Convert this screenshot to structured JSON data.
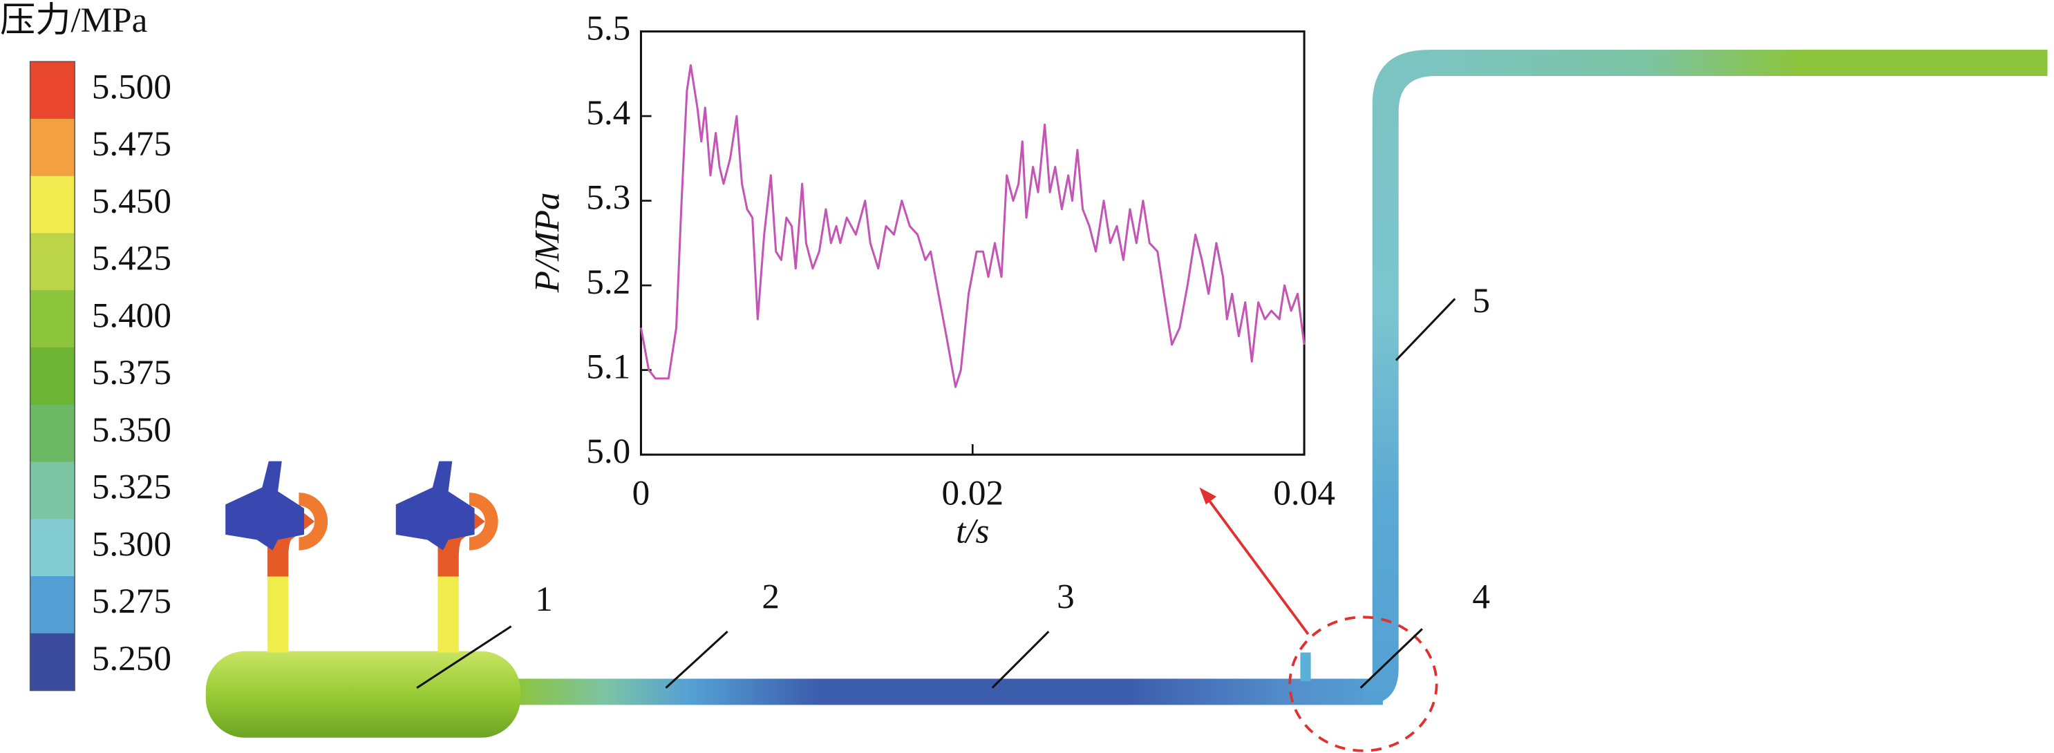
{
  "chart_data": {
    "type": "line",
    "xlabel": "t/s",
    "ylabel": "P/MPa",
    "x": [
      0,
      0.00047,
      0.00087,
      0.00166,
      0.00213,
      0.00245,
      0.00277,
      0.003,
      0.0034,
      0.00364,
      0.00387,
      0.00419,
      0.00451,
      0.00474,
      0.00498,
      0.00538,
      0.00577,
      0.00609,
      0.0064,
      0.00672,
      0.00704,
      0.00743,
      0.00783,
      0.00814,
      0.00846,
      0.00877,
      0.00909,
      0.00933,
      0.00972,
      0.00996,
      0.01036,
      0.01075,
      0.01115,
      0.01146,
      0.01178,
      0.01202,
      0.01241,
      0.01296,
      0.01352,
      0.01383,
      0.01431,
      0.01478,
      0.01526,
      0.01573,
      0.01621,
      0.01668,
      0.01715,
      0.01747,
      0.01794,
      0.01842,
      0.01897,
      0.01929,
      0.01976,
      0.02024,
      0.02063,
      0.02095,
      0.02134,
      0.02174,
      0.02206,
      0.02245,
      0.02277,
      0.023,
      0.02324,
      0.02364,
      0.02395,
      0.02435,
      0.02466,
      0.02498,
      0.02538,
      0.02577,
      0.02601,
      0.02632,
      0.02664,
      0.02704,
      0.02743,
      0.02791,
      0.0283,
      0.0287,
      0.02909,
      0.02949,
      0.02988,
      0.03028,
      0.03067,
      0.03115,
      0.03154,
      0.03202,
      0.03249,
      0.03296,
      0.03344,
      0.03383,
      0.03423,
      0.0347,
      0.0351,
      0.03534,
      0.03565,
      0.03605,
      0.03644,
      0.03684,
      0.03723,
      0.03763,
      0.03802,
      0.0385,
      0.03881,
      0.03921,
      0.0396,
      0.04
    ],
    "series": [
      {
        "name": "P",
        "color": "#c455b4",
        "values": [
          5.15,
          5.1,
          5.09,
          5.09,
          5.15,
          5.3,
          5.43,
          5.46,
          5.41,
          5.37,
          5.41,
          5.33,
          5.38,
          5.34,
          5.32,
          5.35,
          5.4,
          5.32,
          5.29,
          5.28,
          5.16,
          5.26,
          5.33,
          5.24,
          5.23,
          5.28,
          5.27,
          5.22,
          5.32,
          5.25,
          5.22,
          5.24,
          5.29,
          5.25,
          5.27,
          5.25,
          5.28,
          5.26,
          5.3,
          5.25,
          5.22,
          5.27,
          5.26,
          5.3,
          5.27,
          5.26,
          5.23,
          5.24,
          5.19,
          5.14,
          5.08,
          5.1,
          5.19,
          5.24,
          5.24,
          5.21,
          5.25,
          5.21,
          5.33,
          5.3,
          5.32,
          5.37,
          5.28,
          5.34,
          5.31,
          5.39,
          5.31,
          5.34,
          5.29,
          5.33,
          5.3,
          5.36,
          5.29,
          5.27,
          5.24,
          5.3,
          5.25,
          5.27,
          5.23,
          5.29,
          5.25,
          5.3,
          5.25,
          5.24,
          5.19,
          5.13,
          5.15,
          5.2,
          5.26,
          5.23,
          5.19,
          5.25,
          5.21,
          5.16,
          5.19,
          5.14,
          5.18,
          5.11,
          5.18,
          5.16,
          5.17,
          5.16,
          5.2,
          5.17,
          5.19,
          5.13
        ]
      }
    ],
    "xlim": [
      0,
      0.04
    ],
    "ylim": [
      5.0,
      5.5
    ],
    "xticks": [
      0,
      0.02,
      0.04
    ],
    "yticks": [
      {
        "value": 5.0,
        "label": "5.0"
      },
      5.1,
      5.2,
      5.3,
      5.4,
      5.5
    ]
  },
  "colorbar": {
    "title": "压力/MPa",
    "levels": [
      {
        "value": 5.5,
        "label": "5.500"
      },
      5.475,
      {
        "value": 5.45,
        "label": "5.450"
      },
      5.425,
      {
        "value": 5.4,
        "label": "5.400"
      },
      5.375,
      {
        "value": 5.35,
        "label": "5.350"
      },
      5.325,
      {
        "value": 5.3,
        "label": "5.300"
      },
      5.275,
      {
        "value": 5.25,
        "label": "5.250"
      }
    ],
    "colors": [
      "#e8472d",
      "#f3a040",
      "#f3ec50",
      "#bcd448",
      "#8cc43c",
      "#6cb434",
      "#6cb864",
      "#7cc4a4",
      "#84ccd4",
      "#54a0d4",
      "#3c4c9c"
    ]
  },
  "part_labels": [
    "1",
    "2",
    "3",
    "4",
    "5"
  ]
}
